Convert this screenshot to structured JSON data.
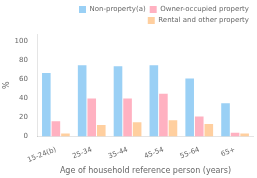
{
  "chart_data": {
    "type": "bar",
    "categories": [
      "15-24(b)",
      "25-34",
      "35-44",
      "45-54",
      "55-64",
      "65+"
    ],
    "series": [
      {
        "name": "Non-property(a)",
        "values": [
          67,
          75,
          74,
          75,
          61,
          35
        ]
      },
      {
        "name": "Owner-occupied property",
        "values": [
          16,
          40,
          40,
          45,
          21,
          4
        ]
      },
      {
        "name": "Rental and other property",
        "values": [
          3,
          12,
          15,
          17,
          13,
          3
        ]
      }
    ],
    "xlabel": "Age of household reference person (years)",
    "ylabel": "%",
    "ylim": [
      0,
      108
    ],
    "yticks": [
      0,
      20,
      40,
      60,
      80,
      100
    ],
    "grid": false,
    "legend": "upper right"
  }
}
